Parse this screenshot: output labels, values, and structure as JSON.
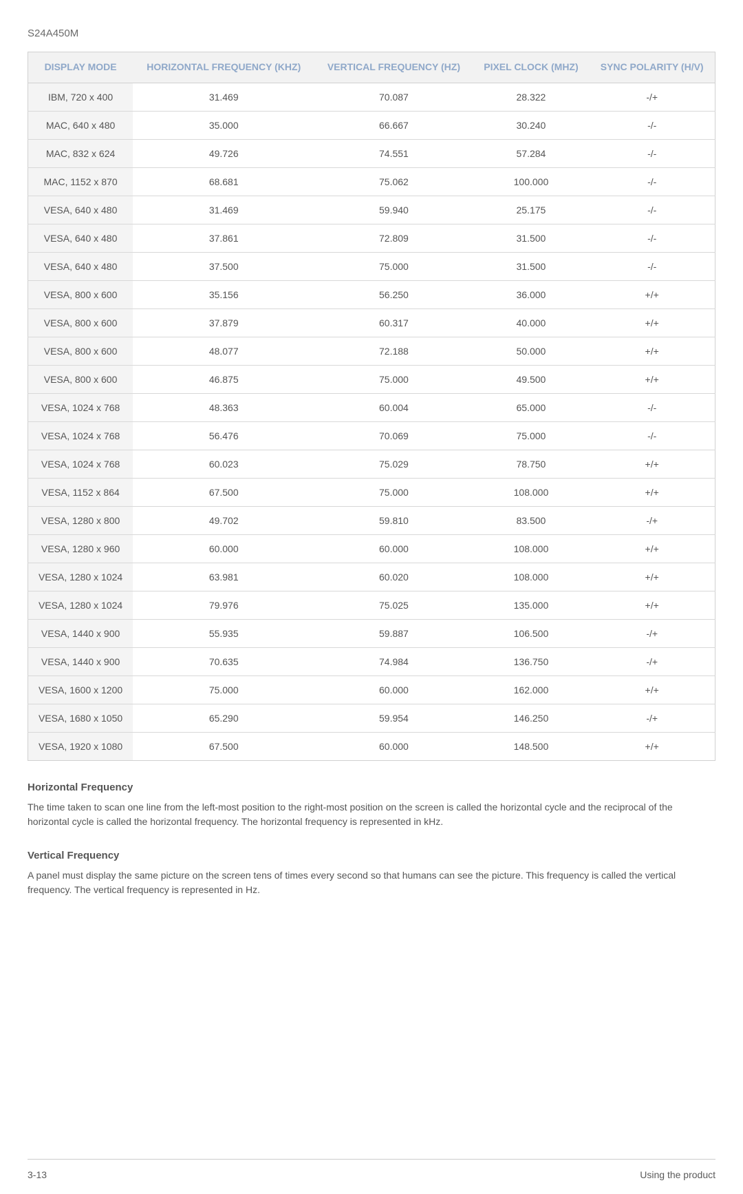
{
  "model": "S24A450M",
  "table": {
    "columns": [
      "DISPLAY MODE",
      "HORIZONTAL FREQUENCY (KHZ)",
      "VERTICAL FREQUENCY  (HZ)",
      "PIXEL CLOCK (MHZ)",
      "SYNC POLARITY (H/V)"
    ],
    "header_bg": "#f2f2f2",
    "header_color": "#8fa8c9",
    "firstcol_bg": "#f4f4f4",
    "border_color": "#d0d0d0",
    "row_border_color": "#d8d8d8",
    "rows": [
      [
        "IBM, 720 x 400",
        "31.469",
        "70.087",
        "28.322",
        "-/+"
      ],
      [
        "MAC, 640 x 480",
        "35.000",
        "66.667",
        "30.240",
        "-/-"
      ],
      [
        "MAC, 832 x 624",
        "49.726",
        "74.551",
        "57.284",
        "-/-"
      ],
      [
        "MAC, 1152 x 870",
        "68.681",
        "75.062",
        "100.000",
        "-/-"
      ],
      [
        "VESA, 640 x 480",
        "31.469",
        "59.940",
        "25.175",
        "-/-"
      ],
      [
        "VESA, 640 x 480",
        "37.861",
        "72.809",
        "31.500",
        "-/-"
      ],
      [
        "VESA, 640 x 480",
        "37.500",
        "75.000",
        "31.500",
        "-/-"
      ],
      [
        "VESA, 800 x 600",
        "35.156",
        "56.250",
        "36.000",
        "+/+"
      ],
      [
        "VESA, 800 x 600",
        "37.879",
        "60.317",
        "40.000",
        "+/+"
      ],
      [
        "VESA, 800 x 600",
        "48.077",
        "72.188",
        "50.000",
        "+/+"
      ],
      [
        "VESA, 800 x 600",
        "46.875",
        "75.000",
        "49.500",
        "+/+"
      ],
      [
        "VESA, 1024 x 768",
        "48.363",
        "60.004",
        "65.000",
        "-/-"
      ],
      [
        "VESA, 1024 x 768",
        "56.476",
        "70.069",
        "75.000",
        "-/-"
      ],
      [
        "VESA, 1024 x 768",
        "60.023",
        "75.029",
        "78.750",
        "+/+"
      ],
      [
        "VESA, 1152 x 864",
        "67.500",
        "75.000",
        "108.000",
        "+/+"
      ],
      [
        "VESA, 1280 x 800",
        "49.702",
        "59.810",
        "83.500",
        "-/+"
      ],
      [
        "VESA, 1280 x 960",
        "60.000",
        "60.000",
        "108.000",
        "+/+"
      ],
      [
        "VESA, 1280 x 1024",
        "63.981",
        "60.020",
        "108.000",
        "+/+"
      ],
      [
        "VESA, 1280 x 1024",
        "79.976",
        "75.025",
        "135.000",
        "+/+"
      ],
      [
        "VESA, 1440 x 900",
        "55.935",
        "59.887",
        "106.500",
        "-/+"
      ],
      [
        "VESA, 1440 x 900",
        "70.635",
        "74.984",
        "136.750",
        "-/+"
      ],
      [
        "VESA, 1600 x 1200",
        "75.000",
        "60.000",
        "162.000",
        "+/+"
      ],
      [
        "VESA, 1680 x 1050",
        "65.290",
        "59.954",
        "146.250",
        "-/+"
      ],
      [
        "VESA, 1920 x 1080",
        "67.500",
        "60.000",
        "148.500",
        "+/+"
      ]
    ]
  },
  "sections": {
    "hfreq_heading": "Horizontal Frequency",
    "hfreq_text": "The time taken to scan one line from the left-most position to the right-most position on the screen is called the horizontal cycle and the reciprocal of the horizontal cycle is called the horizontal frequency. The horizontal frequency is represented in kHz.",
    "vfreq_heading": "Vertical Frequency",
    "vfreq_text": "A panel must display the same picture on the screen tens of times every second so that humans can see the picture. This frequency is called the vertical frequency. The vertical frequency is represented in Hz."
  },
  "footer": {
    "left": "3-13",
    "right": "Using the product"
  },
  "colors": {
    "body_text": "#5a5a5a",
    "background": "#ffffff"
  }
}
